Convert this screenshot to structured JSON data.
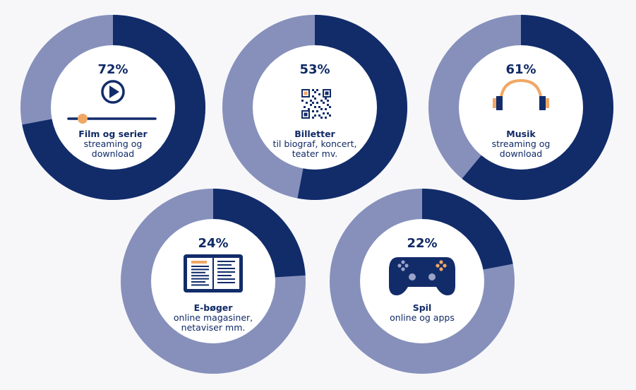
{
  "colors": {
    "filled": "#122c6a",
    "remainder": "#8690bb",
    "center": "#ffffff",
    "accent": "#f1a764",
    "text": "#102a66"
  },
  "chart_data": [
    {
      "type": "pie",
      "title": "Film og serier",
      "subtitle": [
        "streaming og",
        "download"
      ],
      "value": 72,
      "label": "72%",
      "icon": "play-video-icon"
    },
    {
      "type": "pie",
      "title": "Billetter",
      "subtitle": [
        "til biograf,  koncert,",
        "teater mv."
      ],
      "value": 53,
      "label": "53%",
      "icon": "qr-code-icon"
    },
    {
      "type": "pie",
      "title": "Musik",
      "subtitle": [
        "streaming og",
        "download"
      ],
      "value": 61,
      "label": "61%",
      "icon": "headphones-icon"
    },
    {
      "type": "pie",
      "title": "E-bøger",
      "subtitle": [
        "online magasiner,",
        "netaviser mm."
      ],
      "value": 24,
      "label": "24%",
      "icon": "ebook-icon"
    },
    {
      "type": "pie",
      "title": "Spil",
      "subtitle": [
        "online og apps"
      ],
      "value": 22,
      "label": "22%",
      "icon": "gamepad-icon"
    }
  ]
}
